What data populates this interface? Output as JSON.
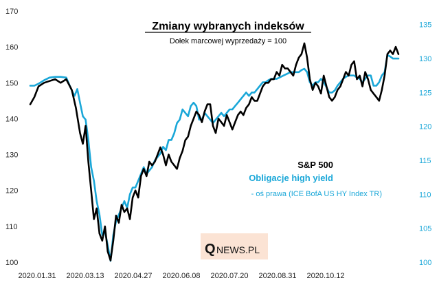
{
  "chart_data": {
    "type": "line",
    "title": "Zmiany wybranych indeksów",
    "subtitle": "Dołek marcowej wyprzedaży = 100",
    "x_tick_labels": [
      "2020.01.31",
      "2020.03.13",
      "2020.04.27",
      "2020.06.08",
      "2020.07.20",
      "2020.08.31",
      "2020.10.12"
    ],
    "ylim_left": [
      100,
      170
    ],
    "yticks_left": [
      100,
      110,
      120,
      130,
      140,
      150,
      160,
      170
    ],
    "ylim_right": [
      100,
      137
    ],
    "yticks_right": [
      100,
      105,
      110,
      115,
      120,
      125,
      130,
      135
    ],
    "series": [
      {
        "name": "S&P 500",
        "axis": "left",
        "color": "#000000",
        "points": [
          [
            0,
            144
          ],
          [
            3,
            146
          ],
          [
            6,
            149
          ],
          [
            10,
            150
          ],
          [
            14,
            150.5
          ],
          [
            18,
            151
          ],
          [
            22,
            150
          ],
          [
            26,
            151
          ],
          [
            30,
            148
          ],
          [
            33,
            143
          ],
          [
            36,
            136
          ],
          [
            38,
            133
          ],
          [
            40,
            138
          ],
          [
            42,
            128
          ],
          [
            44,
            120
          ],
          [
            46,
            112
          ],
          [
            48,
            115
          ],
          [
            50,
            108
          ],
          [
            52,
            106
          ],
          [
            54,
            110
          ],
          [
            56,
            103
          ],
          [
            58,
            100.5
          ],
          [
            60,
            106
          ],
          [
            62,
            113
          ],
          [
            64,
            111
          ],
          [
            66,
            116
          ],
          [
            68,
            114
          ],
          [
            70,
            115
          ],
          [
            72,
            112
          ],
          [
            74,
            118
          ],
          [
            76,
            120
          ],
          [
            78,
            118
          ],
          [
            80,
            124
          ],
          [
            82,
            126
          ],
          [
            84,
            124
          ],
          [
            86,
            128
          ],
          [
            88,
            127
          ],
          [
            90,
            128
          ],
          [
            92,
            130
          ],
          [
            94,
            132
          ],
          [
            96,
            130
          ],
          [
            98,
            127
          ],
          [
            100,
            130
          ],
          [
            102,
            128
          ],
          [
            104,
            127
          ],
          [
            106,
            126
          ],
          [
            108,
            129
          ],
          [
            110,
            131
          ],
          [
            112,
            134
          ],
          [
            114,
            135
          ],
          [
            116,
            138
          ],
          [
            118,
            140
          ],
          [
            120,
            142
          ],
          [
            122,
            141
          ],
          [
            124,
            139
          ],
          [
            126,
            142
          ],
          [
            128,
            144
          ],
          [
            130,
            144
          ],
          [
            132,
            138
          ],
          [
            134,
            136
          ],
          [
            136,
            140
          ],
          [
            138,
            139
          ],
          [
            140,
            138
          ],
          [
            142,
            141
          ],
          [
            144,
            139
          ],
          [
            146,
            137
          ],
          [
            148,
            139
          ],
          [
            150,
            141
          ],
          [
            152,
            142
          ],
          [
            154,
            141
          ],
          [
            156,
            143
          ],
          [
            158,
            144
          ],
          [
            160,
            146
          ],
          [
            162,
            145
          ],
          [
            164,
            145
          ],
          [
            166,
            147
          ],
          [
            168,
            149
          ],
          [
            170,
            150
          ],
          [
            172,
            150
          ],
          [
            174,
            151
          ],
          [
            176,
            151
          ],
          [
            178,
            153
          ],
          [
            180,
            152
          ],
          [
            182,
            155
          ],
          [
            184,
            154
          ],
          [
            186,
            154
          ],
          [
            188,
            153
          ],
          [
            190,
            152
          ],
          [
            192,
            155
          ],
          [
            194,
            157
          ],
          [
            196,
            158
          ],
          [
            198,
            161
          ],
          [
            200,
            157
          ],
          [
            202,
            151
          ],
          [
            204,
            148
          ],
          [
            206,
            150
          ],
          [
            208,
            149
          ],
          [
            210,
            147
          ],
          [
            212,
            152
          ],
          [
            214,
            149
          ],
          [
            216,
            146
          ],
          [
            218,
            145
          ],
          [
            220,
            146
          ],
          [
            222,
            148
          ],
          [
            224,
            149
          ],
          [
            226,
            151
          ],
          [
            228,
            153
          ],
          [
            230,
            152
          ],
          [
            232,
            155
          ],
          [
            234,
            156
          ],
          [
            236,
            151
          ],
          [
            238,
            152
          ],
          [
            240,
            149
          ],
          [
            242,
            153
          ],
          [
            244,
            151
          ],
          [
            246,
            148
          ],
          [
            248,
            147
          ],
          [
            250,
            146
          ],
          [
            252,
            145
          ],
          [
            254,
            148
          ],
          [
            256,
            152
          ],
          [
            258,
            158
          ],
          [
            260,
            159
          ],
          [
            262,
            158
          ],
          [
            264,
            160
          ],
          [
            266,
            158
          ]
        ]
      },
      {
        "name": "Obligacje high yield",
        "axis": "right",
        "note": "- oś prawa (ICE BofA US HY Index TR)",
        "color": "#1aa7d8",
        "points": [
          [
            0,
            126
          ],
          [
            3,
            126
          ],
          [
            6,
            126.3
          ],
          [
            10,
            126.8
          ],
          [
            14,
            127.2
          ],
          [
            18,
            127.3
          ],
          [
            22,
            127.3
          ],
          [
            26,
            127.2
          ],
          [
            30,
            125.3
          ],
          [
            32,
            124.5
          ],
          [
            34,
            125.5
          ],
          [
            36,
            123.5
          ],
          [
            38,
            121.5
          ],
          [
            40,
            121
          ],
          [
            42,
            118
          ],
          [
            44,
            114
          ],
          [
            46,
            112
          ],
          [
            48,
            109
          ],
          [
            50,
            107
          ],
          [
            52,
            104
          ],
          [
            54,
            104.5
          ],
          [
            56,
            102.5
          ],
          [
            58,
            100.2
          ],
          [
            60,
            104
          ],
          [
            62,
            106
          ],
          [
            64,
            107
          ],
          [
            66,
            108
          ],
          [
            68,
            109
          ],
          [
            70,
            108
          ],
          [
            72,
            110
          ],
          [
            74,
            111
          ],
          [
            76,
            111
          ],
          [
            78,
            112
          ],
          [
            80,
            113
          ],
          [
            82,
            114
          ],
          [
            84,
            113
          ],
          [
            86,
            113.5
          ],
          [
            88,
            114
          ],
          [
            90,
            115
          ],
          [
            92,
            115.5
          ],
          [
            94,
            116
          ],
          [
            96,
            117
          ],
          [
            98,
            116.5
          ],
          [
            100,
            118
          ],
          [
            102,
            118
          ],
          [
            104,
            119
          ],
          [
            106,
            120.5
          ],
          [
            108,
            121
          ],
          [
            110,
            122.5
          ],
          [
            112,
            122
          ],
          [
            114,
            121.5
          ],
          [
            116,
            123
          ],
          [
            118,
            123.5
          ],
          [
            120,
            123
          ],
          [
            122,
            121
          ],
          [
            124,
            121
          ],
          [
            126,
            122
          ],
          [
            128,
            121.5
          ],
          [
            130,
            121
          ],
          [
            132,
            120.5
          ],
          [
            134,
            121
          ],
          [
            136,
            121.5
          ],
          [
            138,
            122
          ],
          [
            140,
            121.5
          ],
          [
            142,
            122
          ],
          [
            144,
            122.5
          ],
          [
            146,
            122.5
          ],
          [
            148,
            123
          ],
          [
            150,
            123.5
          ],
          [
            152,
            124
          ],
          [
            154,
            124.5
          ],
          [
            156,
            125
          ],
          [
            158,
            124.5
          ],
          [
            160,
            125
          ],
          [
            162,
            125
          ],
          [
            164,
            125.5
          ],
          [
            166,
            126
          ],
          [
            168,
            126.5
          ],
          [
            170,
            126.5
          ],
          [
            172,
            126.8
          ],
          [
            174,
            127
          ],
          [
            176,
            127
          ],
          [
            178,
            127
          ],
          [
            180,
            127.2
          ],
          [
            182,
            127.4
          ],
          [
            184,
            127.6
          ],
          [
            186,
            127.8
          ],
          [
            188,
            128
          ],
          [
            190,
            128
          ],
          [
            192,
            128
          ],
          [
            194,
            128
          ],
          [
            196,
            128.3
          ],
          [
            198,
            128.5
          ],
          [
            200,
            128
          ],
          [
            202,
            126.5
          ],
          [
            204,
            126
          ],
          [
            206,
            126.5
          ],
          [
            208,
            126.5
          ],
          [
            210,
            127
          ],
          [
            212,
            126.5
          ],
          [
            214,
            125.8
          ],
          [
            216,
            125
          ],
          [
            218,
            125
          ],
          [
            220,
            125.3
          ],
          [
            222,
            126
          ],
          [
            224,
            126.5
          ],
          [
            226,
            127
          ],
          [
            228,
            127.3
          ],
          [
            230,
            127.5
          ],
          [
            232,
            127.5
          ],
          [
            234,
            127.5
          ],
          [
            236,
            127.2
          ],
          [
            238,
            127
          ],
          [
            240,
            126.5
          ],
          [
            242,
            127
          ],
          [
            244,
            127.5
          ],
          [
            246,
            127.5
          ],
          [
            248,
            126
          ],
          [
            250,
            126
          ],
          [
            252,
            126.5
          ],
          [
            254,
            127.5
          ],
          [
            256,
            128
          ],
          [
            258,
            130.5
          ],
          [
            260,
            130.3
          ],
          [
            262,
            130
          ],
          [
            264,
            130
          ],
          [
            266,
            130
          ]
        ]
      }
    ],
    "logo": {
      "q": "Q",
      "rest": "NEWS.PL"
    }
  }
}
